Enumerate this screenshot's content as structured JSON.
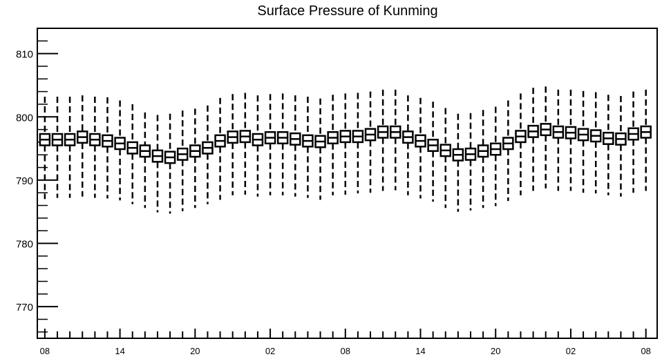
{
  "chart_data": {
    "type": "box",
    "title": "Surface Pressure of Kunming",
    "xlabel": "",
    "ylabel": "",
    "ylim": [
      765,
      814
    ],
    "y_ticks": [
      770,
      780,
      790,
      800,
      810
    ],
    "y_tick_labels": [
      "770",
      "780",
      "790",
      "800",
      "810"
    ],
    "x_ticks": [
      0,
      6,
      12,
      18,
      24,
      30,
      36,
      42,
      48
    ],
    "x_tick_labels": [
      "08",
      "14",
      "20",
      "02",
      "08",
      "14",
      "20",
      "02",
      "08"
    ],
    "xlim": [
      -0.6,
      48.9
    ],
    "hours": [
      0,
      1,
      2,
      3,
      4,
      5,
      6,
      7,
      8,
      9,
      10,
      11,
      12,
      13,
      14,
      15,
      16,
      17,
      18,
      19,
      20,
      21,
      22,
      23,
      24,
      25,
      26,
      27,
      28,
      29,
      30,
      31,
      32,
      33,
      34,
      35,
      36,
      37,
      38,
      39,
      40,
      41,
      42,
      43,
      44,
      45,
      46,
      47,
      48
    ],
    "median": [
      796.4,
      796.4,
      796.4,
      796.8,
      796.4,
      796.2,
      795.8,
      795.1,
      794.6,
      793.8,
      793.6,
      794.1,
      794.6,
      795.1,
      796.2,
      796.8,
      796.9,
      796.4,
      796.7,
      796.7,
      796.5,
      796.2,
      796.1,
      796.7,
      796.9,
      796.9,
      797.2,
      797.6,
      797.6,
      796.8,
      796.2,
      795.5,
      794.7,
      794.0,
      794.1,
      794.6,
      794.9,
      795.8,
      796.9,
      797.7,
      798.0,
      797.6,
      797.5,
      797.2,
      797.0,
      796.6,
      796.5,
      797.3,
      797.6
    ],
    "q1": [
      795.5,
      795.5,
      795.5,
      795.9,
      795.5,
      795.3,
      794.9,
      794.2,
      793.7,
      792.9,
      792.7,
      793.2,
      793.7,
      794.2,
      795.3,
      795.9,
      796.0,
      795.5,
      795.8,
      795.8,
      795.6,
      795.3,
      795.2,
      795.8,
      796.0,
      796.0,
      796.3,
      796.7,
      796.7,
      795.9,
      795.3,
      794.6,
      793.8,
      793.1,
      793.2,
      793.7,
      794.0,
      794.9,
      796.0,
      796.8,
      797.1,
      796.7,
      796.6,
      796.3,
      796.1,
      795.7,
      795.6,
      796.4,
      796.7
    ],
    "q3": [
      797.3,
      797.3,
      797.3,
      797.7,
      797.3,
      797.1,
      796.7,
      796.0,
      795.5,
      794.7,
      794.5,
      795.0,
      795.5,
      796.0,
      797.1,
      797.7,
      797.8,
      797.3,
      797.6,
      797.6,
      797.4,
      797.1,
      797.0,
      797.6,
      797.8,
      797.8,
      798.1,
      798.5,
      798.5,
      797.7,
      797.1,
      796.4,
      795.6,
      794.9,
      795.0,
      795.5,
      795.8,
      796.7,
      797.8,
      798.6,
      798.9,
      798.5,
      798.4,
      798.1,
      797.9,
      797.5,
      797.4,
      798.2,
      798.5
    ],
    "whisker_low": [
      787.0,
      787.2,
      787.2,
      787.4,
      787.2,
      787.1,
      786.8,
      786.2,
      785.6,
      784.9,
      784.7,
      785.1,
      785.6,
      786.2,
      786.9,
      787.6,
      787.7,
      787.4,
      787.6,
      787.6,
      787.4,
      787.2,
      786.9,
      787.6,
      787.7,
      787.9,
      788.0,
      788.3,
      788.4,
      787.6,
      787.1,
      786.6,
      785.6,
      785.0,
      785.2,
      785.6,
      785.9,
      786.7,
      787.6,
      788.3,
      788.7,
      788.3,
      788.3,
      788.0,
      787.9,
      787.6,
      787.4,
      788.0,
      788.3
    ],
    "whisker_high": [
      803.2,
      803.2,
      803.2,
      803.4,
      803.2,
      803.1,
      802.6,
      802.0,
      800.7,
      800.3,
      800.5,
      801.0,
      801.3,
      801.8,
      803.0,
      803.6,
      803.8,
      803.4,
      803.6,
      803.7,
      803.4,
      803.2,
      802.9,
      803.5,
      803.7,
      803.8,
      804.0,
      804.3,
      804.3,
      803.4,
      803.0,
      802.4,
      801.4,
      800.5,
      800.6,
      801.1,
      801.6,
      802.6,
      803.7,
      804.6,
      804.8,
      804.3,
      804.3,
      804.1,
      803.9,
      803.5,
      803.3,
      804.0,
      804.3
    ],
    "grid": false,
    "legend": "none"
  }
}
